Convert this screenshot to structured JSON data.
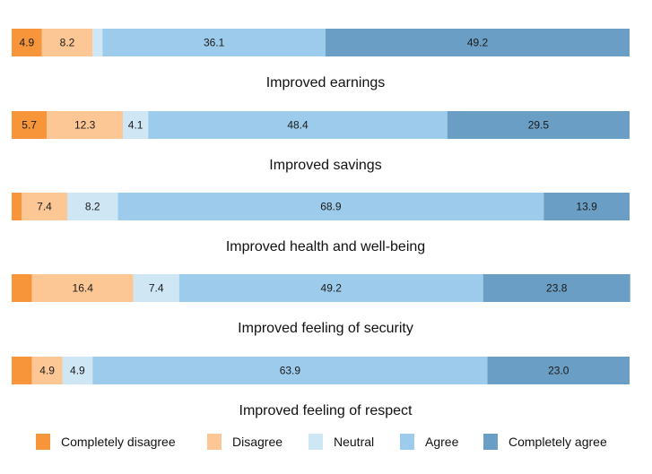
{
  "chart_data": {
    "type": "bar",
    "orientation": "horizontal",
    "stacked": true,
    "categories": [
      "Improved earnings",
      "Improved savings",
      "Improved health and well-being",
      "Improved feeling of security",
      "Improved feeling of respect"
    ],
    "series": [
      {
        "name": "Completely disagree",
        "color": "#f7953a",
        "values": [
          4.9,
          5.7,
          1.6,
          3.3,
          3.3
        ]
      },
      {
        "name": "Disagree",
        "color": "#fdc795",
        "values": [
          8.2,
          12.3,
          7.4,
          16.4,
          4.9
        ]
      },
      {
        "name": "Neutral",
        "color": "#cfe6f5",
        "values": [
          1.6,
          4.1,
          8.2,
          7.4,
          4.9
        ]
      },
      {
        "name": "Agree",
        "color": "#9ccbeb",
        "values": [
          36.1,
          48.4,
          68.9,
          49.2,
          63.9
        ]
      },
      {
        "name": "Completely agree",
        "color": "#6a9ec4",
        "values": [
          49.2,
          29.5,
          13.9,
          23.8,
          23.0
        ]
      }
    ],
    "labels": [
      [
        "4.9",
        "8.2",
        "",
        "36.1",
        "49.2"
      ],
      [
        "5.7",
        "12.3",
        "4.1",
        "48.4",
        "29.5"
      ],
      [
        "",
        "7.4",
        "8.2",
        "68.9",
        "13.9"
      ],
      [
        "",
        "16.4",
        "7.4",
        "49.2",
        "23.8"
      ],
      [
        "",
        "4.9",
        "4.9",
        "63.9",
        "23.0"
      ]
    ],
    "xlim": [
      0,
      100
    ],
    "legend": "bottom",
    "grid": false
  }
}
